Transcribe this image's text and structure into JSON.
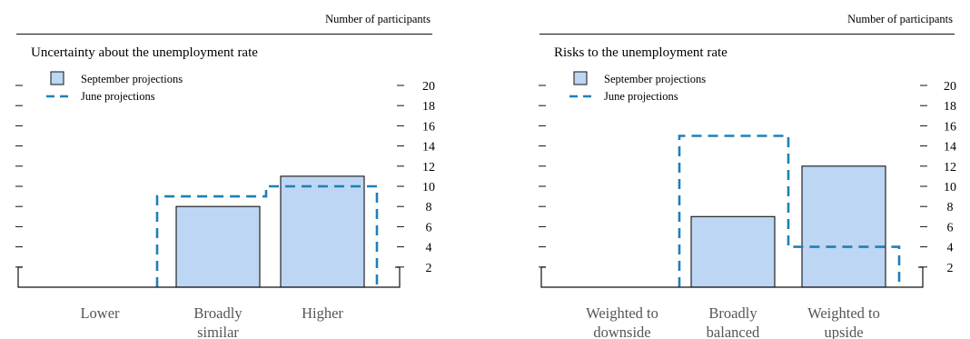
{
  "chart_data": [
    {
      "type": "bar",
      "title": "Uncertainty about the unemployment rate",
      "ylabel": "Number of participants",
      "categories": [
        "Lower",
        "Broadly similar",
        "Higher"
      ],
      "series": [
        {
          "name": "September projections",
          "values": [
            0,
            8,
            11
          ],
          "style": "bar"
        },
        {
          "name": "June projections",
          "values": [
            0,
            9,
            10
          ],
          "style": "dashed-step"
        }
      ],
      "yticks": [
        2,
        4,
        6,
        8,
        10,
        12,
        14,
        16,
        18,
        20
      ],
      "ylim": [
        0,
        20
      ],
      "legend": "top-left"
    },
    {
      "type": "bar",
      "title": "Risks to the unemployment rate",
      "ylabel": "Number of participants",
      "categories": [
        "Weighted to downside",
        "Broadly balanced",
        "Weighted to upside"
      ],
      "series": [
        {
          "name": "September projections",
          "values": [
            0,
            7,
            12
          ],
          "style": "bar"
        },
        {
          "name": "June projections",
          "values": [
            0,
            15,
            4
          ],
          "style": "dashed-step"
        }
      ],
      "yticks": [
        2,
        4,
        6,
        8,
        10,
        12,
        14,
        16,
        18,
        20
      ],
      "ylim": [
        0,
        20
      ],
      "legend": "top-left"
    }
  ],
  "colors": {
    "bar_fill": "#bcd6f3",
    "bar_stroke": "#111111",
    "june_line": "#1f7fb6",
    "axis": "#111111"
  }
}
